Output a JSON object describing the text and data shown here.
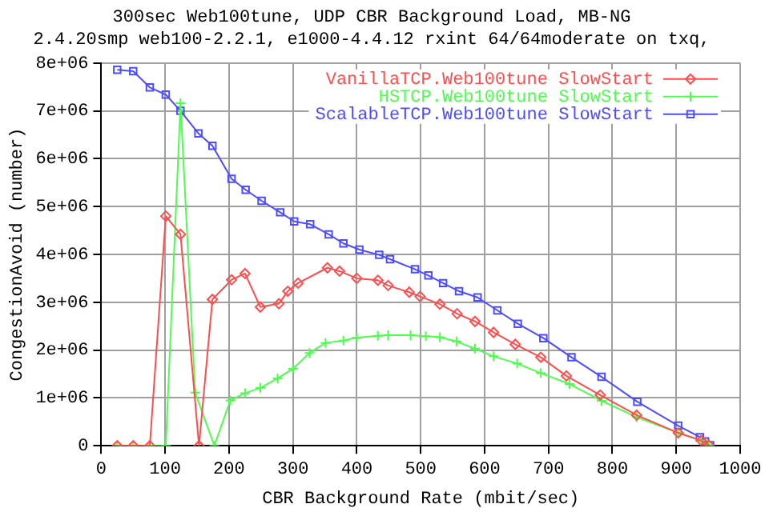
{
  "chart_data": {
    "type": "line",
    "title": "300sec Web100tune, UDP CBR Background Load, MB-NG",
    "subtitle": "2.4.20smp web100-2.2.1, e1000-4.4.12 rxint 64/64moderate on txq,",
    "xlabel": "CBR Background Rate (mbit/sec)",
    "ylabel": "CongestionAvoid (number)",
    "series": [
      {
        "name": "VanillaTCP.Web100tune SlowStart",
        "color": "#ff4d4d",
        "marker": "diamond",
        "x": [
          25,
          50,
          76,
          101,
          124,
          153,
          174,
          204,
          225,
          249,
          278,
          292,
          308,
          354,
          373,
          400,
          433,
          449,
          482,
          499,
          530,
          557,
          585,
          614,
          648,
          688,
          728,
          781,
          838,
          903,
          939,
          951
        ],
        "values": [
          0,
          0,
          0,
          4800000,
          4420000,
          0,
          3060000,
          3470000,
          3600000,
          2900000,
          2970000,
          3230000,
          3400000,
          3720000,
          3650000,
          3500000,
          3460000,
          3350000,
          3210000,
          3120000,
          2960000,
          2760000,
          2600000,
          2370000,
          2120000,
          1850000,
          1460000,
          1060000,
          640000,
          270000,
          110000,
          10000
        ]
      },
      {
        "name": "HSTCP.Web100tune SlowStart",
        "color": "#4dff4d",
        "marker": "cross",
        "x": [
          25,
          50,
          76,
          101,
          124,
          147,
          177,
          202,
          225,
          249,
          276,
          300,
          326,
          351,
          379,
          400,
          433,
          449,
          484,
          508,
          530,
          556,
          585,
          614,
          651,
          688,
          733,
          783,
          838,
          903,
          939,
          951
        ],
        "values": [
          0,
          0,
          0,
          0,
          7160000,
          1110000,
          0,
          950000,
          1100000,
          1210000,
          1410000,
          1610000,
          1940000,
          2150000,
          2200000,
          2260000,
          2300000,
          2310000,
          2310000,
          2290000,
          2270000,
          2180000,
          2030000,
          1870000,
          1720000,
          1520000,
          1290000,
          940000,
          600000,
          270000,
          110000,
          10000
        ]
      },
      {
        "name": "ScalableTCP.Web100tune SlowStart",
        "color": "#4d4dff",
        "marker": "square",
        "x": [
          25,
          50,
          76,
          101,
          124,
          152,
          174,
          204,
          226,
          251,
          280,
          302,
          327,
          356,
          379,
          404,
          435,
          452,
          491,
          512,
          535,
          560,
          589,
          620,
          652,
          692,
          736,
          783,
          839,
          903,
          937,
          945,
          953
        ],
        "values": [
          7860000,
          7830000,
          7490000,
          7340000,
          7000000,
          6530000,
          6270000,
          5580000,
          5350000,
          5120000,
          4880000,
          4690000,
          4630000,
          4420000,
          4230000,
          4100000,
          3990000,
          3900000,
          3690000,
          3560000,
          3400000,
          3230000,
          3100000,
          2830000,
          2550000,
          2250000,
          1850000,
          1440000,
          920000,
          420000,
          180000,
          90000,
          10000
        ]
      }
    ],
    "xlim": [
      0,
      1000
    ],
    "xticks": [
      0,
      100,
      200,
      300,
      400,
      500,
      600,
      700,
      800,
      900,
      1000
    ],
    "ylim": [
      0,
      8000000
    ],
    "yticks": [
      0,
      {
        "value": 1000000,
        "label": "1e+06"
      },
      {
        "value": 2000000,
        "label": "2e+06"
      },
      {
        "value": 3000000,
        "label": "3e+06"
      },
      {
        "value": 4000000,
        "label": "4e+06"
      },
      {
        "value": 5000000,
        "label": "5e+06"
      },
      {
        "value": 6000000,
        "label": "6e+06"
      },
      {
        "value": 7000000,
        "label": "7e+06"
      },
      {
        "value": 8000000,
        "label": "8e+06"
      }
    ],
    "grid": true,
    "legend": "top right",
    "line_style": "solid"
  }
}
